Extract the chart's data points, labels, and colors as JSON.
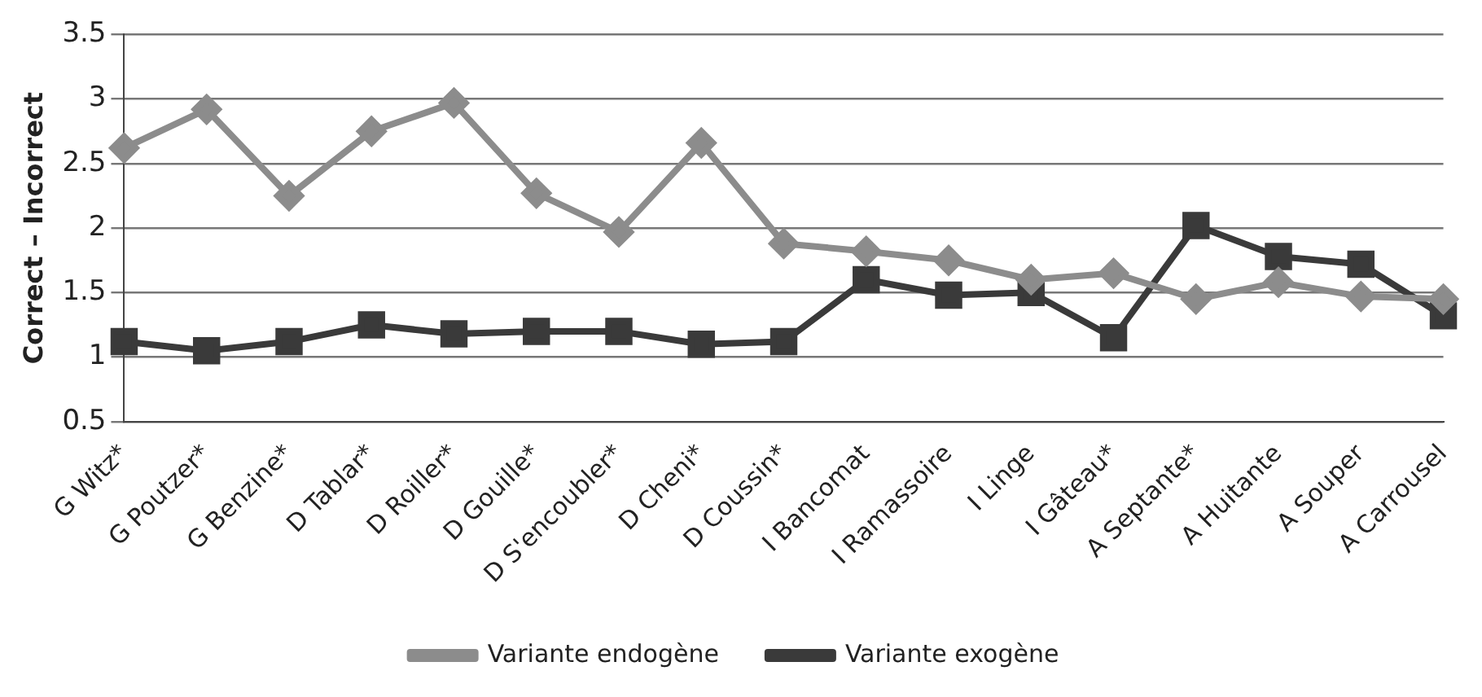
{
  "chart_data": {
    "type": "line",
    "ylabel": "Correct – Incorrect",
    "categories": [
      "G Witz*",
      "G Poutzer*",
      "G Benzine*",
      "D Tablar*",
      "D Roiller*",
      "D Gouille*",
      "D S'encoubler*",
      "D Cheni*",
      "D Coussin*",
      "I Bancomat",
      "I Ramassoire",
      "I Linge",
      "I Gâteau*",
      "A Septante*",
      "A Huitante",
      "A Souper",
      "A Carrousel"
    ],
    "series": [
      {
        "name": "Variante endogène",
        "color": "#8c8c8c",
        "marker": "diamond",
        "values": [
          2.62,
          2.92,
          2.25,
          2.75,
          2.97,
          2.27,
          1.97,
          2.66,
          1.88,
          1.82,
          1.75,
          1.6,
          1.65,
          1.45,
          1.58,
          1.47,
          1.45
        ]
      },
      {
        "name": "Variante exogène",
        "color": "#3a3a3a",
        "marker": "square",
        "values": [
          1.12,
          1.05,
          1.12,
          1.25,
          1.18,
          1.2,
          1.2,
          1.1,
          1.12,
          1.6,
          1.48,
          1.5,
          1.15,
          2.02,
          1.78,
          1.72,
          1.32
        ]
      }
    ],
    "ylim": [
      0.5,
      3.5
    ],
    "yticks": [
      0.5,
      1,
      1.5,
      2,
      2.5,
      3,
      3.5
    ],
    "grid": "y",
    "legend": "bottom"
  }
}
